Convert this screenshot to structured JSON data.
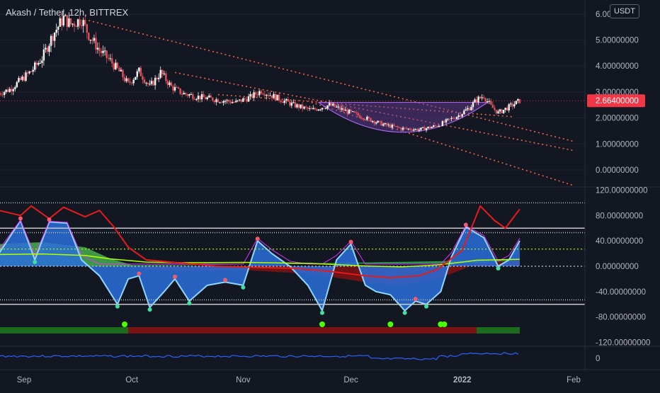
{
  "header": {
    "title": "Akash / Tether, 12h, BITTREX",
    "currency": "USDT"
  },
  "colors": {
    "background": "#131722",
    "axis_text": "#b2b5be",
    "price_line": "#f23645",
    "trend_line": "#f0624c",
    "candle_up": "#f5f5f5",
    "candle_down": "#e0525a",
    "cup": "#6a3f9c",
    "osc_blue": "#2a6fdb",
    "osc_light": "#8fd6ff",
    "osc_red": "#e81b1b",
    "osc_green": "#2ec35a",
    "osc_lime": "#b4ff00",
    "osc_magenta": "#d936ff",
    "osc_orange": "#ff6a00",
    "osc_yellow": "#f4f05a",
    "dot_green": "#4cff00",
    "band_red": "#7a1313",
    "band_green": "#1d6b1d",
    "bottom_line": "#2962ff"
  },
  "chart_data": [
    {
      "type": "candlestick",
      "title": "Akash / Tether, 12h, BITTREX",
      "ylim": [
        -0.6,
        6.2
      ],
      "y_ticks": [
        "6.00000000",
        "5.00000000",
        "4.00000000",
        "3.00000000",
        "2.00000000",
        "1.00000000",
        "0.00000000"
      ],
      "y_tick_values": [
        6,
        5,
        4,
        3,
        2,
        1,
        0
      ],
      "x_ticks": [
        "Sep",
        "Oct",
        "Nov",
        "Dec",
        "2022",
        "Feb"
      ],
      "last_price": 2.664,
      "last_price_label": "2.66400000",
      "close_trace": [
        [
          "2021-08-25",
          2.95
        ],
        [
          "2021-08-28",
          3.1
        ],
        [
          "2021-08-31",
          3.45
        ],
        [
          "2021-09-03",
          3.8
        ],
        [
          "2021-09-06",
          4.3
        ],
        [
          "2021-09-09",
          5.2
        ],
        [
          "2021-09-12",
          5.85
        ],
        [
          "2021-09-14",
          5.6
        ],
        [
          "2021-09-17",
          5.8
        ],
        [
          "2021-09-19",
          5.2
        ],
        [
          "2021-09-22",
          4.6
        ],
        [
          "2021-09-25",
          4.2
        ],
        [
          "2021-09-28",
          3.7
        ],
        [
          "2021-09-30",
          3.3
        ],
        [
          "2021-10-03",
          3.8
        ],
        [
          "2021-10-06",
          3.2
        ],
        [
          "2021-10-09",
          3.75
        ],
        [
          "2021-10-12",
          3.2
        ],
        [
          "2021-10-15",
          2.95
        ],
        [
          "2021-10-20",
          2.8
        ],
        [
          "2021-10-25",
          2.7
        ],
        [
          "2021-10-30",
          2.6
        ],
        [
          "2021-11-03",
          2.8
        ],
        [
          "2021-11-06",
          3.05
        ],
        [
          "2021-11-10",
          2.8
        ],
        [
          "2021-11-15",
          2.5
        ],
        [
          "2021-11-20",
          2.3
        ],
        [
          "2021-11-25",
          2.5
        ],
        [
          "2021-11-28",
          2.35
        ],
        [
          "2021-12-02",
          2.15
        ],
        [
          "2021-12-06",
          1.95
        ],
        [
          "2021-12-10",
          1.75
        ],
        [
          "2021-12-15",
          1.6
        ],
        [
          "2021-12-20",
          1.55
        ],
        [
          "2021-12-25",
          1.7
        ],
        [
          "2021-12-28",
          1.9
        ],
        [
          "2021-12-31",
          2.1
        ],
        [
          "2022-01-03",
          2.4
        ],
        [
          "2022-01-05",
          2.7
        ],
        [
          "2022-01-07",
          2.85
        ],
        [
          "2022-01-09",
          2.45
        ],
        [
          "2022-01-11",
          2.2
        ],
        [
          "2022-01-13",
          2.35
        ],
        [
          "2022-01-15",
          2.5
        ],
        [
          "2022-01-17",
          2.664
        ]
      ]
    },
    {
      "type": "line",
      "title": "",
      "ylim": [
        -120,
        120
      ],
      "y_ticks": [
        "120.00000000",
        "80.00000000",
        "40.00000000",
        "0.00000000",
        "-40.00000000",
        "-80.00000000",
        "-120.00000000"
      ],
      "y_tick_values": [
        120,
        80,
        40,
        0,
        -40,
        -80,
        -120
      ],
      "levels": [
        100,
        60,
        53,
        27,
        0,
        -53,
        -60
      ],
      "series": [
        {
          "values": [
            [
              "2021-08-25",
              88
            ],
            [
              "2021-08-31",
              80
            ],
            [
              "2021-09-03",
              95
            ],
            [
              "2021-09-08",
              75
            ],
            [
              "2021-09-12",
              93
            ],
            [
              "2021-09-18",
              78
            ],
            [
              "2021-09-22",
              88
            ],
            [
              "2021-09-26",
              62
            ],
            [
              "2021-09-30",
              30
            ],
            [
              "2021-10-05",
              10
            ],
            [
              "2021-10-15",
              5
            ],
            [
              "2021-10-25",
              0
            ],
            [
              "2021-11-05",
              -2
            ],
            [
              "2021-11-15",
              -3
            ],
            [
              "2021-11-25",
              -8
            ],
            [
              "2021-12-05",
              -15
            ],
            [
              "2021-12-12",
              -18
            ],
            [
              "2021-12-20",
              -15
            ],
            [
              "2021-12-25",
              -5
            ],
            [
              "2022-01-01",
              25
            ],
            [
              "2022-01-06",
              95
            ],
            [
              "2022-01-10",
              72
            ],
            [
              "2022-01-13",
              60
            ],
            [
              "2022-01-17",
              90
            ]
          ]
        },
        {
          "values": [
            [
              "2021-08-25",
              20
            ],
            [
              "2021-08-31",
              72
            ],
            [
              "2021-09-04",
              10
            ],
            [
              "2021-09-08",
              70
            ],
            [
              "2021-09-13",
              68
            ],
            [
              "2021-09-17",
              10
            ],
            [
              "2021-09-22",
              -15
            ],
            [
              "2021-09-27",
              -60
            ],
            [
              "2021-09-30",
              -20
            ],
            [
              "2021-10-03",
              -15
            ],
            [
              "2021-10-06",
              -65
            ],
            [
              "2021-10-10",
              -40
            ],
            [
              "2021-10-13",
              -20
            ],
            [
              "2021-10-17",
              -55
            ],
            [
              "2021-10-22",
              -30
            ],
            [
              "2021-10-27",
              -25
            ],
            [
              "2021-11-01",
              -30
            ],
            [
              "2021-11-05",
              40
            ],
            [
              "2021-11-09",
              20
            ],
            [
              "2021-11-14",
              0
            ],
            [
              "2021-11-19",
              -30
            ],
            [
              "2021-11-23",
              -70
            ],
            [
              "2021-11-27",
              10
            ],
            [
              "2021-12-01",
              35
            ],
            [
              "2021-12-05",
              -30
            ],
            [
              "2021-12-08",
              -40
            ],
            [
              "2021-12-12",
              -45
            ],
            [
              "2021-12-16",
              -70
            ],
            [
              "2021-12-19",
              -55
            ],
            [
              "2021-12-22",
              -60
            ],
            [
              "2021-12-26",
              -40
            ],
            [
              "2021-12-29",
              15
            ],
            [
              "2022-01-02",
              62
            ],
            [
              "2022-01-07",
              45
            ],
            [
              "2022-01-11",
              0
            ],
            [
              "2022-01-14",
              10
            ],
            [
              "2022-01-17",
              40
            ]
          ]
        }
      ],
      "signal_dots": [
        "2021-09-29",
        "2021-11-23",
        "2021-12-12",
        "2021-12-26",
        "2021-12-27"
      ],
      "band_segments": [
        {
          "start": "2021-08-25",
          "end": "2021-09-30",
          "state": "green"
        },
        {
          "start": "2021-09-30",
          "end": "2022-01-05",
          "state": "red"
        },
        {
          "start": "2022-01-05",
          "end": "2022-01-17",
          "state": "green"
        }
      ]
    },
    {
      "type": "line",
      "title": "",
      "y_ticks": [
        "0"
      ],
      "y_tick_values": [
        0
      ]
    }
  ]
}
